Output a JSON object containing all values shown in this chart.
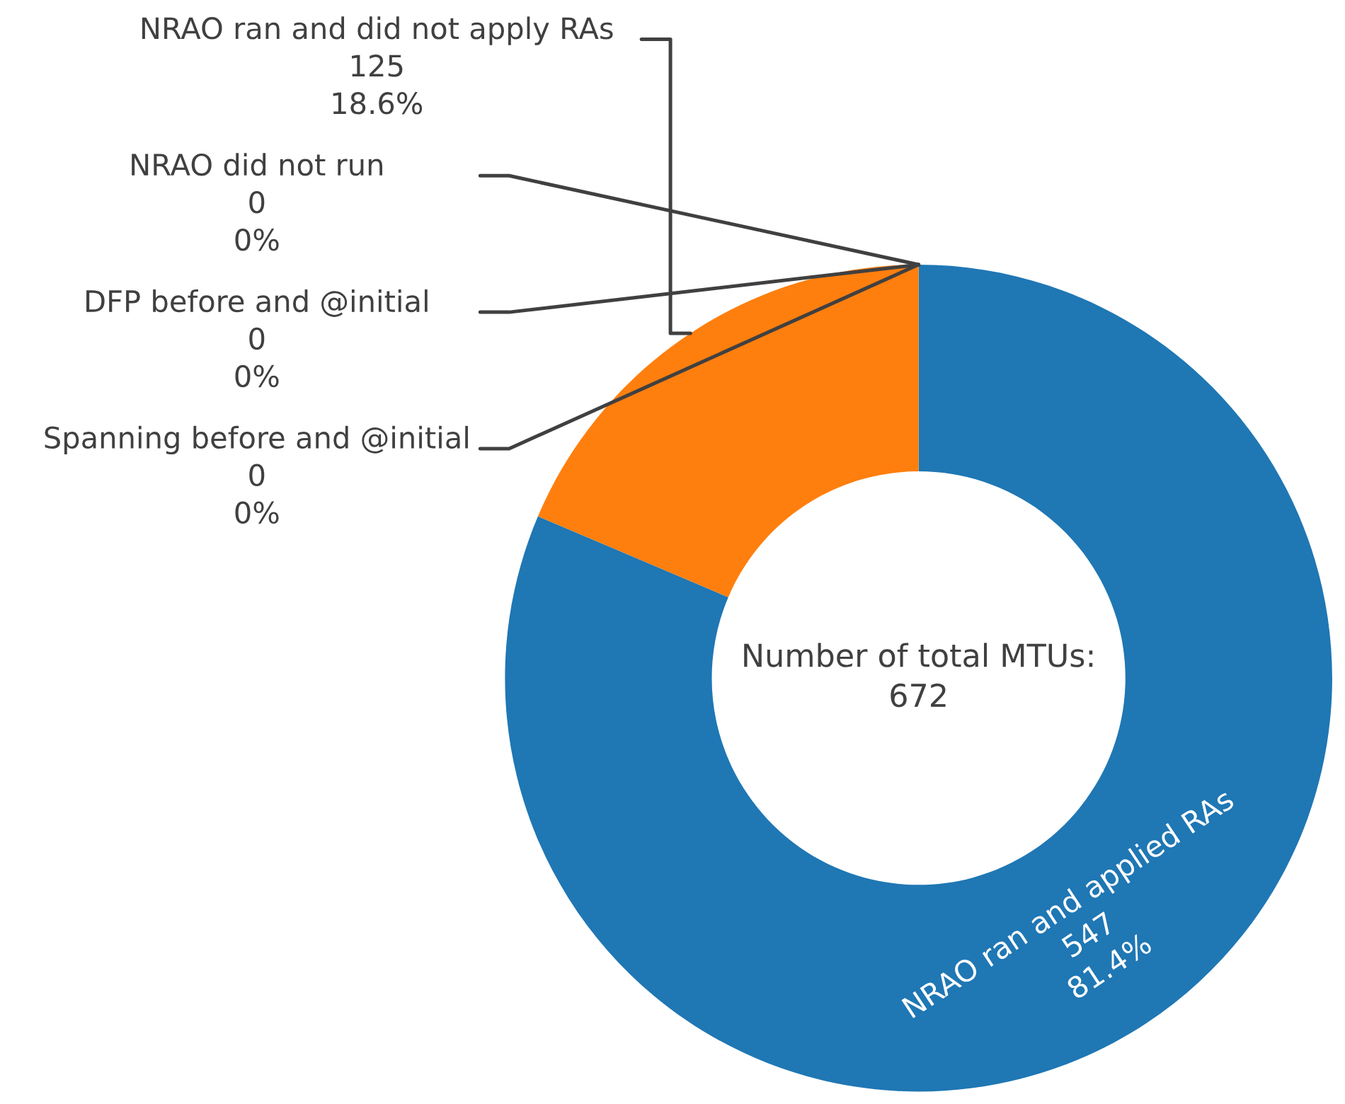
{
  "chart_data": {
    "type": "donut",
    "categories": [
      "NRAO ran and applied RAs",
      "NRAO ran and did not apply RAs",
      "NRAO did not run",
      "DFP before and @initial",
      "Spanning before and @initial"
    ],
    "values": [
      547,
      125,
      0,
      0,
      0
    ],
    "colors": [
      "#1f77b4",
      "#ff7f0e",
      "#2ca02c",
      "#d62728",
      "#9467bd"
    ],
    "value_labels": [
      "547\n81.4%",
      "125\n18.6%",
      "0\n0%",
      "0\n0%",
      "0\n0%"
    ],
    "annotations": [
      "Number of total MTUs:\n672"
    ],
    "legend": false
  }
}
